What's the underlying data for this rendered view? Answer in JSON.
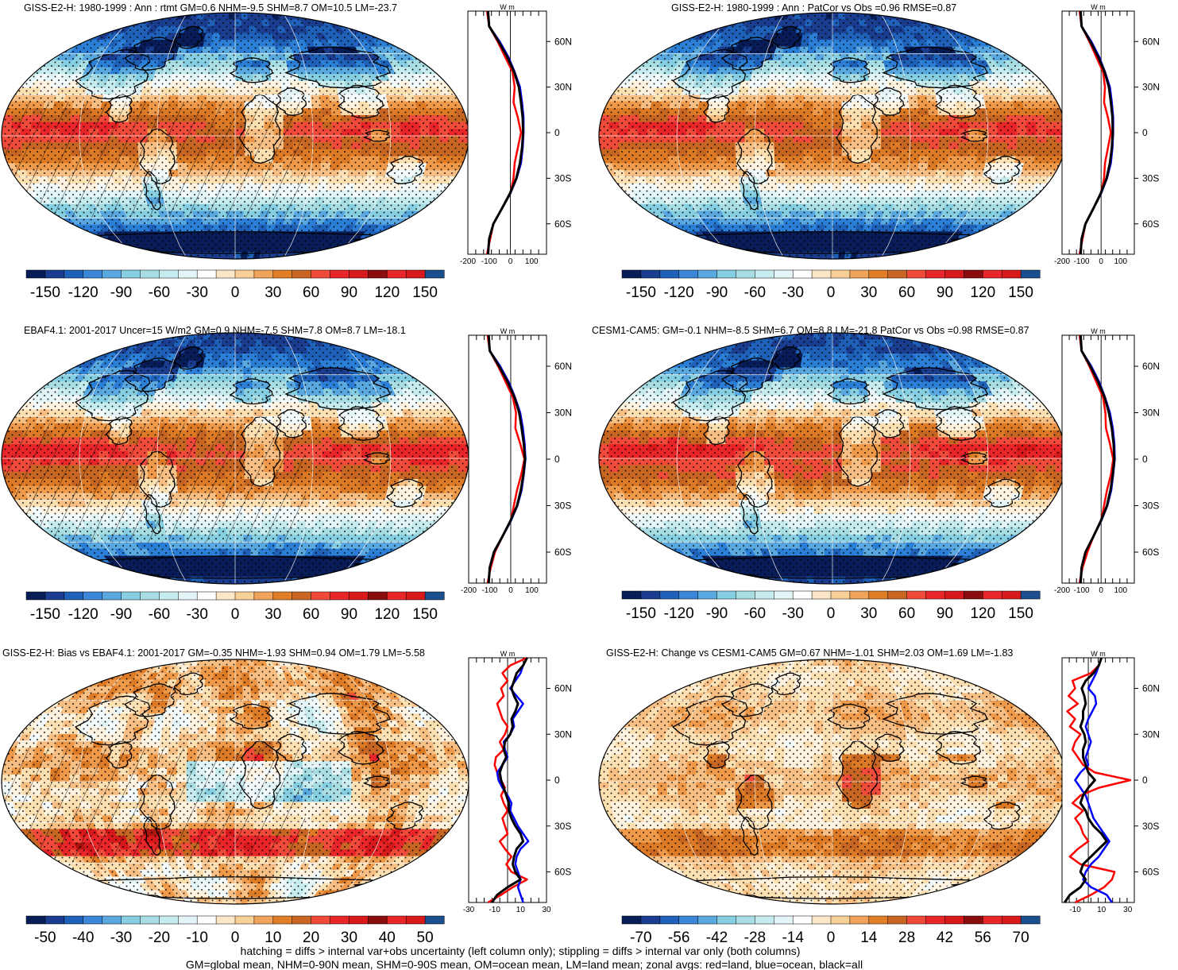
{
  "chart_data": [
    {
      "type": "heatmap",
      "title": "GISS-E2-H: 1980-1999 : Ann : rtmt GM=0.6 NHM=-9.5 SHM=8.7 OM=10.5 LM=-23.7",
      "colorbar": {
        "ticks": [
          "-150",
          "-120",
          "-90",
          "-60",
          "-30",
          "0",
          "30",
          "60",
          "90",
          "120",
          "150"
        ],
        "range": [
          -150,
          150
        ]
      },
      "hatching": true,
      "stippling": true,
      "field": {
        "pattern": "toa_net",
        "equator": 75,
        "pole": -130,
        "land_shift": -22,
        "seed": 1
      },
      "zonal": {
        "unit": "W m",
        "x_ticks": [
          "-200",
          "-100",
          "0",
          "100"
        ],
        "xlim": [
          -200,
          170
        ],
        "y_ticks": [
          "60N",
          "30N",
          "0",
          "30S",
          "60S"
        ],
        "lat": [
          80,
          70,
          60,
          50,
          40,
          30,
          20,
          10,
          0,
          -10,
          -20,
          -30,
          -40,
          -50,
          -60,
          -70,
          -80
        ],
        "series": [
          {
            "name": "red",
            "color": "#ff0000",
            "values": [
              -110,
              -100,
              -60,
              -25,
              10,
              20,
              15,
              35,
              50,
              35,
              20,
              15,
              0,
              -40,
              -80,
              -95,
              -110
            ]
          },
          {
            "name": "blue",
            "color": "#0000ff",
            "values": [
              -105,
              -100,
              -50,
              -10,
              20,
              45,
              55,
              62,
              62,
              58,
              50,
              30,
              0,
              -40,
              -80,
              -100,
              -105
            ]
          },
          {
            "name": "black",
            "color": "#000000",
            "values": [
              -105,
              -100,
              -55,
              -15,
              18,
              40,
              50,
              58,
              60,
              55,
              45,
              28,
              -2,
              -40,
              -80,
              -100,
              -105
            ]
          }
        ]
      }
    },
    {
      "type": "heatmap",
      "title": "GISS-E2-H: 1980-1999 : Ann : PatCor vs Obs =0.96 RMSE=0.87",
      "colorbar": {
        "ticks": [
          "-150",
          "-120",
          "-90",
          "-60",
          "-30",
          "0",
          "30",
          "60",
          "90",
          "120",
          "150"
        ],
        "range": [
          -150,
          150
        ]
      },
      "hatching": false,
      "stippling": true,
      "field": {
        "pattern": "toa_net",
        "equator": 75,
        "pole": -130,
        "land_shift": -22,
        "seed": 1
      },
      "zonal": {
        "unit": "W m",
        "x_ticks": [
          "-200",
          "-100",
          "0",
          "100"
        ],
        "xlim": [
          -200,
          170
        ],
        "y_ticks": [
          "60N",
          "30N",
          "0",
          "30S",
          "60S"
        ],
        "lat": [
          80,
          70,
          60,
          50,
          40,
          30,
          20,
          10,
          0,
          -10,
          -20,
          -30,
          -40,
          -50,
          -60,
          -70,
          -80
        ],
        "series": [
          {
            "name": "red",
            "color": "#ff0000",
            "values": [
              -110,
              -100,
              -60,
              -25,
              10,
              20,
              15,
              35,
              50,
              35,
              20,
              15,
              0,
              -40,
              -80,
              -95,
              -110
            ]
          },
          {
            "name": "blue",
            "color": "#0000ff",
            "values": [
              -105,
              -100,
              -50,
              -10,
              20,
              45,
              55,
              62,
              62,
              58,
              50,
              30,
              0,
              -40,
              -80,
              -100,
              -105
            ]
          },
          {
            "name": "black",
            "color": "#000000",
            "values": [
              -105,
              -100,
              -55,
              -15,
              18,
              40,
              50,
              58,
              60,
              55,
              45,
              28,
              -2,
              -40,
              -80,
              -100,
              -105
            ]
          }
        ]
      }
    },
    {
      "type": "heatmap",
      "title": "EBAF4.1: 2001-2017 Uncer=15 W/m2 GM=0.9 NHM=-7.5 SHM=7.8 OM=8.7 LM=-18.1",
      "colorbar": {
        "ticks": [
          "-150",
          "-120",
          "-90",
          "-60",
          "-30",
          "0",
          "30",
          "60",
          "90",
          "120",
          "150"
        ],
        "range": [
          -150,
          150
        ]
      },
      "hatching": true,
      "stippling": true,
      "field": {
        "pattern": "toa_net",
        "equator": 80,
        "pole": -125,
        "land_shift": -20,
        "seed": 2
      },
      "zonal": {
        "unit": "W m",
        "x_ticks": [
          "-200",
          "-100",
          "0",
          "100"
        ],
        "xlim": [
          -200,
          170
        ],
        "y_ticks": [
          "60N",
          "30N",
          "0",
          "30S",
          "60S"
        ],
        "lat": [
          80,
          70,
          60,
          50,
          40,
          30,
          20,
          10,
          0,
          -10,
          -20,
          -30,
          -40,
          -50,
          -60,
          -70,
          -80
        ],
        "series": [
          {
            "name": "red",
            "color": "#ff0000",
            "values": [
              -110,
              -100,
              -60,
              -25,
              10,
              25,
              22,
              45,
              65,
              50,
              30,
              15,
              0,
              -40,
              -75,
              -95,
              -110
            ]
          },
          {
            "name": "blue",
            "color": "#0000ff",
            "values": [
              -105,
              -100,
              -50,
              -10,
              20,
              45,
              58,
              66,
              70,
              62,
              52,
              32,
              0,
              -40,
              -80,
              -100,
              -105
            ]
          },
          {
            "name": "black",
            "color": "#000000",
            "values": [
              -105,
              -100,
              -55,
              -15,
              18,
              40,
              52,
              62,
              68,
              60,
              48,
              30,
              -2,
              -40,
              -80,
              -100,
              -105
            ]
          }
        ]
      }
    },
    {
      "type": "heatmap",
      "title": "CESM1-CAM5: GM=-0.1 NHM=-8.5 SHM=6.7 OM=8.8 LM=-21.8 PatCor vs Obs =0.98 RMSE=0.87",
      "colorbar": {
        "ticks": [
          "-150",
          "-120",
          "-90",
          "-60",
          "-30",
          "0",
          "30",
          "60",
          "90",
          "120",
          "150"
        ],
        "range": [
          -150,
          150
        ]
      },
      "hatching": false,
      "stippling": true,
      "field": {
        "pattern": "toa_net",
        "equator": 82,
        "pole": -125,
        "land_shift": -22,
        "seed": 3
      },
      "zonal": {
        "unit": "W m",
        "x_ticks": [
          "-200",
          "-100",
          "0",
          "100"
        ],
        "xlim": [
          -200,
          170
        ],
        "y_ticks": [
          "60N",
          "30N",
          "0",
          "30S",
          "60S"
        ],
        "lat": [
          80,
          70,
          60,
          50,
          40,
          30,
          20,
          10,
          0,
          -10,
          -20,
          -30,
          -40,
          -50,
          -60,
          -70,
          -80
        ],
        "series": [
          {
            "name": "red",
            "color": "#ff0000",
            "values": [
              -110,
              -100,
              -60,
              -25,
              10,
              22,
              25,
              45,
              62,
              50,
              30,
              15,
              0,
              -40,
              -70,
              -95,
              -110
            ]
          },
          {
            "name": "blue",
            "color": "#0000ff",
            "values": [
              -105,
              -100,
              -50,
              -10,
              20,
              45,
              60,
              68,
              70,
              62,
              52,
              32,
              0,
              -40,
              -80,
              -100,
              -105
            ]
          },
          {
            "name": "black",
            "color": "#000000",
            "values": [
              -105,
              -100,
              -55,
              -15,
              18,
              40,
              55,
              64,
              68,
              60,
              48,
              30,
              -2,
              -40,
              -80,
              -100,
              -105
            ]
          }
        ]
      }
    },
    {
      "type": "heatmap",
      "title": "GISS-E2-H: Bias vs EBAF4.1: 2001-2017 GM=-0.35 NHM=-1.93 SHM=0.94 OM=1.79 LM=-5.58",
      "colorbar": {
        "ticks": [
          "-50",
          "-40",
          "-30",
          "-20",
          "-10",
          "0",
          "10",
          "20",
          "30",
          "40",
          "50"
        ],
        "range": [
          -55,
          55
        ]
      },
      "hatching": true,
      "stippling": true,
      "field": {
        "pattern": "bias",
        "seed": 4
      },
      "zonal": {
        "unit": "W m",
        "x_ticks": [
          "-30",
          "-10",
          "10",
          "30"
        ],
        "xlim": [
          -30,
          30
        ],
        "y_ticks": [
          "60N",
          "30N",
          "0",
          "30S",
          "60S"
        ],
        "lat": [
          80,
          75,
          70,
          65,
          60,
          55,
          50,
          45,
          40,
          35,
          30,
          25,
          20,
          15,
          10,
          5,
          0,
          -5,
          -10,
          -15,
          -20,
          -25,
          -30,
          -35,
          -40,
          -45,
          -50,
          -55,
          -60,
          -65,
          -70,
          -75,
          -80
        ],
        "series": [
          {
            "name": "red",
            "color": "#ff0000",
            "values": [
              15,
              2,
              -4,
              0,
              -5,
              -3,
              -8,
              -6,
              -4,
              0,
              -2,
              -6,
              -3,
              -9,
              -10,
              -8,
              -5,
              -2,
              -5,
              -3,
              0,
              -4,
              -2,
              0,
              -6,
              -2,
              3,
              -1,
              3,
              15,
              4,
              -5,
              -15
            ]
          },
          {
            "name": "blue",
            "color": "#0000ff",
            "values": [
              15,
              12,
              10,
              6,
              2,
              7,
              12,
              8,
              4,
              5,
              2,
              -3,
              -2,
              0,
              -4,
              -8,
              -7,
              -4,
              0,
              3,
              2,
              5,
              8,
              12,
              16,
              10,
              7,
              6,
              8,
              10,
              8,
              10,
              12
            ]
          },
          {
            "name": "black",
            "color": "#000000",
            "values": [
              15,
              12,
              7,
              5,
              3,
              5,
              8,
              6,
              3,
              4,
              2,
              -2,
              -3,
              -1,
              -4,
              -6,
              -5,
              -3,
              -1,
              1,
              1,
              3,
              6,
              10,
              12,
              7,
              5,
              4,
              6,
              10,
              0,
              -8,
              -12
            ]
          }
        ]
      }
    },
    {
      "type": "heatmap",
      "title": "GISS-E2-H: Change vs CESM1-CAM5 GM=0.67 NHM=-1.01 SHM=2.03 OM=1.69 LM=-1.83",
      "colorbar": {
        "ticks": [
          "-70",
          "-56",
          "-42",
          "-28",
          "-14",
          "0",
          "14",
          "28",
          "42",
          "56",
          "70"
        ],
        "range": [
          -77,
          77
        ]
      },
      "hatching": false,
      "stippling": true,
      "field": {
        "pattern": "change",
        "seed": 5
      },
      "zonal": {
        "unit": "W m",
        "x_ticks": [
          "-10",
          "10",
          "30"
        ],
        "xlim": [
          -20,
          35
        ],
        "y_ticks": [
          "60N",
          "30N",
          "0",
          "30S",
          "60S"
        ],
        "lat": [
          80,
          75,
          70,
          65,
          60,
          55,
          50,
          45,
          40,
          35,
          30,
          25,
          20,
          15,
          10,
          5,
          0,
          -5,
          -10,
          -15,
          -20,
          -25,
          -30,
          -35,
          -40,
          -45,
          -50,
          -55,
          -60,
          -65,
          -70,
          -75,
          -80
        ],
        "series": [
          {
            "name": "red",
            "color": "#ff0000",
            "values": [
              10,
              8,
              2,
              -12,
              -10,
              -15,
              -8,
              -16,
              -10,
              -14,
              -6,
              -10,
              -12,
              -8,
              -4,
              5,
              32,
              8,
              -6,
              -12,
              -4,
              -10,
              -6,
              -4,
              0,
              -8,
              -14,
              -6,
              20,
              18,
              12,
              2,
              -10
            ]
          },
          {
            "name": "blue",
            "color": "#0000ff",
            "values": [
              10,
              8,
              6,
              3,
              0,
              5,
              6,
              3,
              0,
              -2,
              0,
              2,
              0,
              -2,
              0,
              -6,
              -10,
              -6,
              -2,
              0,
              2,
              4,
              8,
              12,
              16,
              12,
              8,
              2,
              -2,
              -4,
              2,
              14,
              18
            ]
          },
          {
            "name": "black",
            "color": "#000000",
            "values": [
              10,
              8,
              4,
              -2,
              -5,
              -3,
              -2,
              -4,
              -4,
              -6,
              -3,
              -2,
              -4,
              -4,
              -2,
              0,
              5,
              0,
              -4,
              -6,
              -2,
              0,
              4,
              10,
              14,
              8,
              2,
              -4,
              -6,
              -2,
              -6,
              -14,
              -18
            ]
          }
        ]
      }
    }
  ],
  "footer": {
    "line1": "hatching = diffs > internal var+obs uncertainty (left column only); stippling = diffs > internal var only (both columns)",
    "line2": "GM=global mean, NHM=0-90N mean, SHM=0-90S mean, OM=ocean mean, LM=land mean; zonal avgs: red=land, blue=ocean, black=all"
  },
  "palettes": {
    "diverging_21": [
      "#081d58",
      "#1a3d8f",
      "#1f60b8",
      "#2b7fd6",
      "#5aa8e0",
      "#86cfe2",
      "#a7dde3",
      "#c7ecef",
      "#e4f5f8",
      "#f4fbfc",
      "#fff3df",
      "#fde0b2",
      "#f8bf84",
      "#ef9a4a",
      "#dd7a25",
      "#c76622",
      "#f04a3a",
      "#e8262a",
      "#d7191c",
      "#b1140f",
      "#8a0d0d"
    ],
    "colorbar_22": [
      "#081d58",
      "#1a3d8f",
      "#1f60b8",
      "#3b86d6",
      "#5aa8e0",
      "#86cfe2",
      "#a7dde3",
      "#c7ecef",
      "#e4f5f8",
      "#ffffff",
      "#fbe7c7",
      "#f8cf96",
      "#f0a35a",
      "#e07f27",
      "#c96522",
      "#f04a3a",
      "#e8262a",
      "#d7191c",
      "#8a0d0d",
      "#e8262a",
      "#d7191c",
      "#1b4e8c"
    ]
  }
}
